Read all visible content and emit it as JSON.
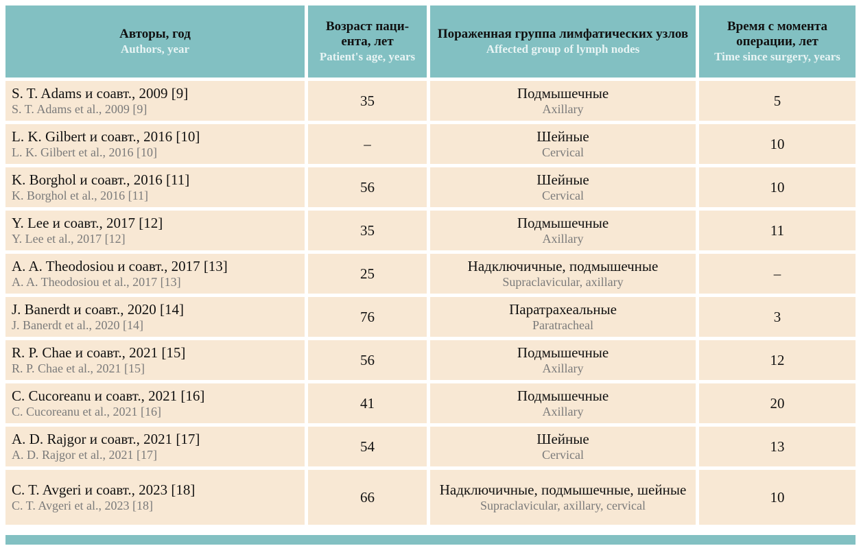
{
  "header": {
    "authors_ru": "Авторы, год",
    "authors_en": "Authors, year",
    "age_ru": "Возраст паци-ента, лет",
    "age_en": "Patient's age, years",
    "nodes_ru": "Пораженная группа лимфатических узлов",
    "nodes_en": "Affected group of lymph nodes",
    "time_ru": "Время с момента операции, лет",
    "time_en": "Time since surgery, years"
  },
  "rows": [
    {
      "author_ru": "S. T. Adams и соавт., 2009 [9]",
      "author_en": "S. T.  Adams et al., 2009 [9]",
      "age": "35",
      "nodes_ru": "Подмышечные",
      "nodes_en": "Axillary",
      "time": "5"
    },
    {
      "author_ru": "L. K. Gilbert и соавт., 2016 [10]",
      "author_en": "L. K. Gilbert et al., 2016 [10]",
      "age": "–",
      "nodes_ru": "Шейные",
      "nodes_en": "Cervical",
      "time": "10"
    },
    {
      "author_ru": "K. Borghol и соавт., 2016 [11]",
      "author_en": "K. Borghol et al., 2016 [11]",
      "age": "56",
      "nodes_ru": "Шейные",
      "nodes_en": "Cervical",
      "time": "10"
    },
    {
      "author_ru": "Y. Lee и соавт., 2017 [12]",
      "author_en": "Y. Lee et al., 2017 [12]",
      "age": "35",
      "nodes_ru": "Подмышечные",
      "nodes_en": "Axillary",
      "time": "11"
    },
    {
      "author_ru": "A. A. Theodosiou и соавт., 2017 [13]",
      "author_en": "A. A. Theodosiou et al., 2017 [13]",
      "age": "25",
      "nodes_ru": "Надключичные, подмышечные",
      "nodes_en": "Supraclavicular, axillary",
      "time": "–"
    },
    {
      "author_ru": "J. Banerdt и соавт., 2020 [14]",
      "author_en": "J. Banerdt et al., 2020 [14]",
      "age": "76",
      "nodes_ru": "Паратрахеальные",
      "nodes_en": "Paratracheal",
      "time": "3"
    },
    {
      "author_ru": "R. P. Chae и соавт., 2021 [15]",
      "author_en": "R. P. Chae et al., 2021 [15]",
      "age": "56",
      "nodes_ru": "Подмышечные",
      "nodes_en": "Axillary",
      "time": "12"
    },
    {
      "author_ru": "C. Cucoreanu и соавт., 2021 [16]",
      "author_en": "C. Cucoreanu et al., 2021 [16]",
      "age": "41",
      "nodes_ru": "Подмышечные",
      "nodes_en": "Axillary",
      "time": "20"
    },
    {
      "author_ru": "A. D. Rajgor и соавт., 2021 [17]",
      "author_en": "A. D. Rajgor et al., 2021 [17]",
      "age": "54",
      "nodes_ru": "Шейные",
      "nodes_en": "Cervical",
      "time": "13"
    },
    {
      "author_ru": "C. T. Avgeri и соавт., 2023 [18]",
      "author_en": "C. T. Avgeri et al., 2023 [18]",
      "age": "66",
      "nodes_ru": "Надключичные, подмышечные, шейные",
      "nodes_en": "Supraclavicular, axillary, cervical",
      "time": "10"
    }
  ],
  "colors": {
    "header_bg": "#82c0c2",
    "cell_bg": "#f8e8d4",
    "english_header_text": "#e8f4f4",
    "english_text": "#7a7a7a"
  }
}
